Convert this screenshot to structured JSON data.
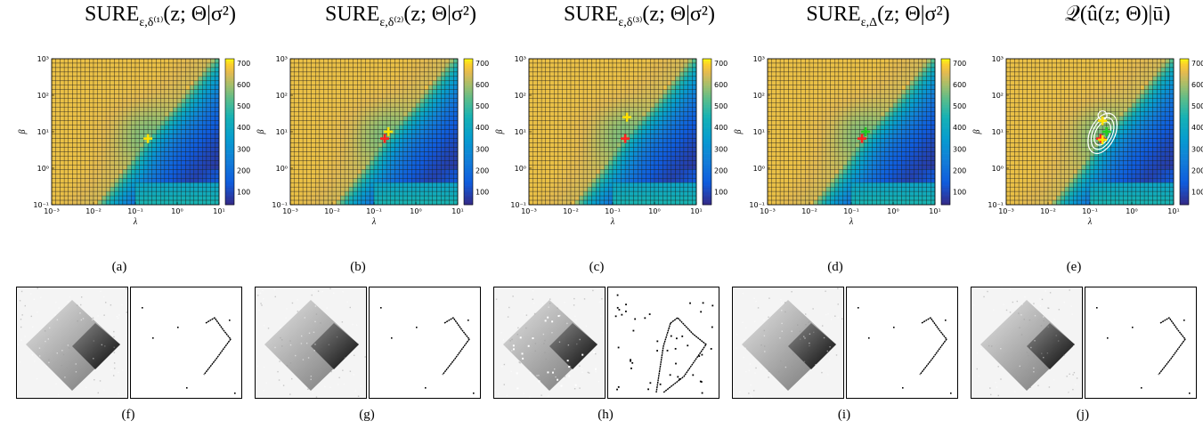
{
  "panels": [
    {
      "id": "a",
      "title_main": "SURE",
      "title_sub": "ε,δ⁽¹⁾",
      "title_rest": "(z; Θ|σ²)",
      "caption": "(a)",
      "colorbar_ticks": [
        "700",
        "600",
        "500",
        "400",
        "300",
        "200",
        "100"
      ],
      "markers": [
        {
          "color": "#ffe000",
          "lambda": 0.2,
          "beta": 6.5
        }
      ]
    },
    {
      "id": "b",
      "title_main": "SURE",
      "title_sub": "ε,δ⁽²⁾",
      "title_rest": "(z; Θ|σ²)",
      "caption": "(b)",
      "colorbar_ticks": [
        "700",
        "600",
        "500",
        "400",
        "300",
        "200",
        "100"
      ],
      "markers": [
        {
          "color": "#ff2020",
          "lambda": 0.18,
          "beta": 6.5
        },
        {
          "color": "#ffe000",
          "lambda": 0.22,
          "beta": 10
        }
      ]
    },
    {
      "id": "c",
      "title_main": "SURE",
      "title_sub": "ε,δ⁽³⁾",
      "title_rest": "(z; Θ|σ²)",
      "caption": "(c)",
      "colorbar_ticks": [
        "700",
        "600",
        "500",
        "400",
        "300",
        "200",
        "100"
      ],
      "markers": [
        {
          "color": "#ff2020",
          "lambda": 0.2,
          "beta": 6.5
        },
        {
          "color": "#ffe000",
          "lambda": 0.22,
          "beta": 25
        }
      ]
    },
    {
      "id": "d",
      "title_main": "SURE",
      "title_sub": "ε,Δ",
      "title_rest": "(z; Θ|σ²)",
      "caption": "(d)",
      "colorbar_ticks": [
        "700",
        "600",
        "500",
        "400",
        "300",
        "200",
        "100"
      ],
      "markers": [
        {
          "color": "#ff2020",
          "lambda": 0.18,
          "beta": 6.5
        },
        {
          "color": "#22cc22",
          "lambda": 0.22,
          "beta": 10
        }
      ]
    },
    {
      "id": "e",
      "title_main": "𝒬(û(z; Θ)|ū)",
      "title_sub": "",
      "title_rest": "",
      "caption": "(e)",
      "colorbar_ticks": [
        "700",
        "600",
        "500",
        "400",
        "300",
        "200",
        "100"
      ],
      "markers": [
        {
          "color": "#ffe000",
          "lambda": 0.2,
          "beta": 20
        },
        {
          "color": "#ff2020",
          "lambda": 0.18,
          "beta": 6.5
        },
        {
          "color": "#22cc22",
          "lambda": 0.25,
          "beta": 10
        },
        {
          "color": "#ffe000",
          "lambda": 0.2,
          "beta": 6
        }
      ]
    }
  ],
  "axes": {
    "xlabel": "λ",
    "ylabel": "β",
    "x_ticks": [
      "10⁻³",
      "10⁻²",
      "10⁻¹",
      "10⁰",
      "10¹"
    ],
    "y_ticks": [
      "10³",
      "10²",
      "10¹",
      "10⁰",
      "10⁻¹"
    ],
    "xlim": [
      0.001,
      10
    ],
    "ylim": [
      0.1,
      1000
    ],
    "xscale": "log",
    "yscale": "log",
    "colormap": "parula",
    "clim": [
      40,
      720
    ]
  },
  "bottom_captions": [
    "(f)",
    "(g)",
    "(h)",
    "(i)",
    "(j)"
  ],
  "chart_data": {
    "type": "heatmap",
    "xlabel": "λ",
    "ylabel": "β",
    "xlim": [
      0.001,
      10
    ],
    "ylim": [
      0.1,
      1000
    ],
    "colorbar_range": [
      40,
      720
    ]
  }
}
